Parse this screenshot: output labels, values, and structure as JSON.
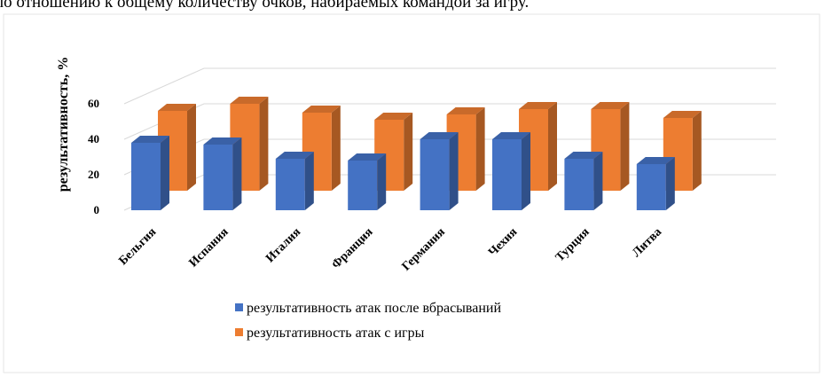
{
  "heading": "по отношению к общему количеству очков, набираемых командой за игру.",
  "chart_data": {
    "type": "bar3d",
    "y_label": "результативность, %",
    "categories": [
      "Бельгия",
      "Испания",
      "Италия",
      "Франция",
      "Германия",
      "Чехия",
      "Турция",
      "Литва"
    ],
    "series": [
      {
        "name": "результативность атак после вбрасываний",
        "color": "#4472c4",
        "values": [
          38,
          37,
          29,
          28,
          40,
          40,
          29,
          26
        ]
      },
      {
        "name": "результативность атак с игры",
        "color": "#ed7d31",
        "values": [
          45,
          49,
          44,
          40,
          43,
          46,
          46,
          41
        ]
      }
    ],
    "ylim": [
      0,
      100
    ],
    "yticks": [
      0,
      20,
      40,
      60
    ],
    "grid": true,
    "legend": "bottom"
  }
}
